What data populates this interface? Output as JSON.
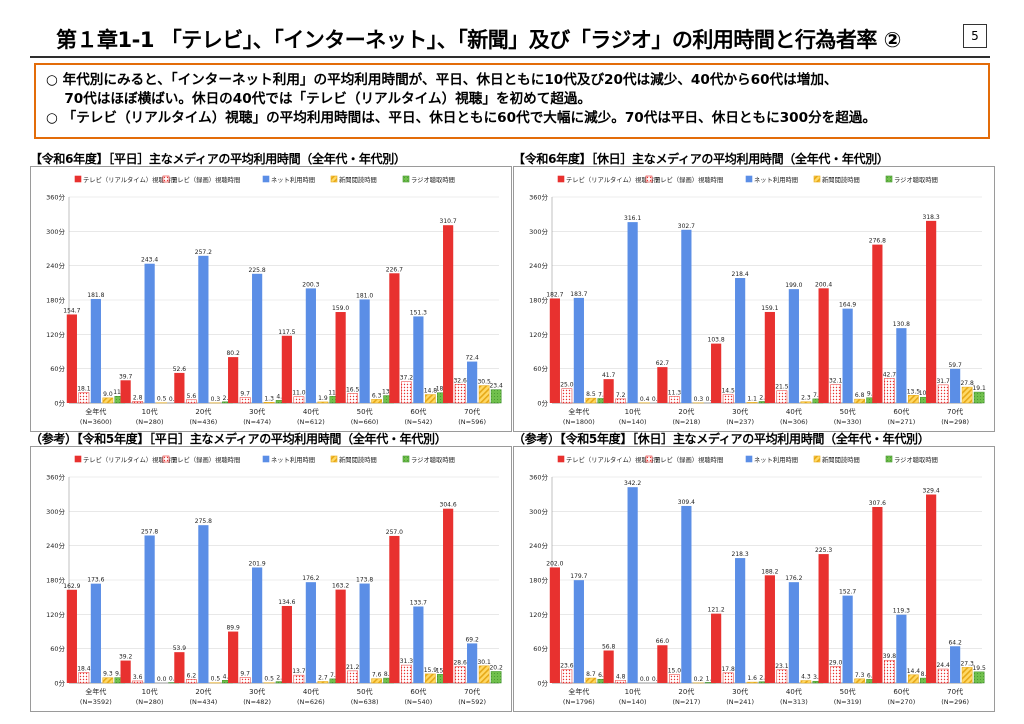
{
  "header": {
    "title": "第１章1-1 「テレビ」、「インターネット」、「新聞」及び「ラジオ」の利用時間と行為者率 ②",
    "page_number": "5"
  },
  "summary": {
    "lines": [
      "○ 年代別にみると、「インターネット利用」の平均利用時間が、平日、休日ともに10代及び20代は減少、40代から60代は増加、",
      "　 70代はほぼ横ばい。休日の40代では「テレビ（リアルタイム）視聴」を初めて超過。",
      "○ 「テレビ（リアルタイム）視聴」の平均利用時間は、平日、休日ともに60代で大幅に減少。70代は平日、休日ともに300分を超過。"
    ]
  },
  "legend_labels": [
    "テレビ（リアルタイム）視聴時間",
    "テレビ（録画）視聴時間",
    "ネット利用時間",
    "新聞閲読時間",
    "ラジオ聴取時間"
  ],
  "colors": {
    "accent_border": "#e36c09",
    "tv_realtime": "#e8312f",
    "tv_recorded": "#ffffff",
    "tv_recorded_dots": "#e8312f",
    "net": "#5b8ee6",
    "newspaper": "#ffd966",
    "newspaper_stripes": "#e6a817",
    "radio": "#70c04c",
    "radio_dots": "#3f8f2a"
  },
  "chart_data": [
    {
      "type": "bar",
      "title": "【令和6年度】［平日］主なメディアの平均利用時間（全年代・年代別）",
      "categories": [
        "全年代",
        "10代",
        "20代",
        "30代",
        "40代",
        "50代",
        "60代",
        "70代"
      ],
      "category_n": [
        "(N=3600)",
        "(N=280)",
        "(N=436)",
        "(N=474)",
        "(N=612)",
        "(N=660)",
        "(N=542)",
        "(N=596)"
      ],
      "yticks": [
        "0分",
        "60分",
        "120分",
        "180分",
        "240分",
        "300分",
        "360分"
      ],
      "ylim": [
        0,
        360
      ],
      "legend_position": "top",
      "series": [
        {
          "name": "テレビ（リアルタイム）視聴時間",
          "values": [
            154.7,
            39.7,
            52.6,
            80.2,
            117.5,
            159.0,
            226.7,
            310.7
          ]
        },
        {
          "name": "テレビ（録画）視聴時間",
          "values": [
            18.1,
            2.8,
            5.6,
            9.7,
            11.0,
            16.5,
            37.2,
            32.6
          ]
        },
        {
          "name": "ネット利用時間",
          "values": [
            181.8,
            243.4,
            257.2,
            225.8,
            200.3,
            181.0,
            151.3,
            72.4
          ]
        },
        {
          "name": "新聞閲読時間",
          "values": [
            9.0,
            0.5,
            0.3,
            1.3,
            1.9,
            6.3,
            14.8,
            30.5
          ]
        },
        {
          "name": "ラジオ聴取時間",
          "values": [
            11.8,
            0.0,
            2.1,
            4.7,
            11.7,
            13.0,
            18.0,
            23.4
          ]
        }
      ]
    },
    {
      "type": "bar",
      "title": "【令和6年度】［休日］主なメディアの平均利用時間（全年代・年代別）",
      "categories": [
        "全年代",
        "10代",
        "20代",
        "30代",
        "40代",
        "50代",
        "60代",
        "70代"
      ],
      "category_n": [
        "(N=1800)",
        "(N=140)",
        "(N=218)",
        "(N=237)",
        "(N=306)",
        "(N=330)",
        "(N=271)",
        "(N=298)"
      ],
      "yticks": [
        "0分",
        "60分",
        "120分",
        "180分",
        "240分",
        "300分",
        "360分"
      ],
      "ylim": [
        0,
        360
      ],
      "legend_position": "top",
      "series": [
        {
          "name": "テレビ（リアルタイム）視聴時間",
          "values": [
            182.7,
            41.7,
            62.7,
            103.8,
            159.1,
            200.4,
            276.8,
            318.3
          ]
        },
        {
          "name": "テレビ（録画）視聴時間",
          "values": [
            25.0,
            7.2,
            11.3,
            14.5,
            21.5,
            32.1,
            42.7,
            31.7
          ]
        },
        {
          "name": "ネット利用時間",
          "values": [
            183.7,
            316.1,
            302.7,
            218.4,
            199.0,
            164.9,
            130.8,
            59.7
          ]
        },
        {
          "name": "新聞閲読時間",
          "values": [
            8.5,
            0.4,
            0.3,
            1.1,
            2.3,
            6.8,
            13.5,
            27.8
          ]
        },
        {
          "name": "ラジオ聴取時間",
          "values": [
            7.9,
            0.0,
            0.0,
            2.7,
            7.2,
            9.2,
            10.1,
            19.1
          ]
        }
      ]
    },
    {
      "type": "bar",
      "title": "（参考）【令和5年度】［平日］主なメディアの平均利用時間（全年代・年代別）",
      "categories": [
        "全年代",
        "10代",
        "20代",
        "30代",
        "40代",
        "50代",
        "60代",
        "70代"
      ],
      "category_n": [
        "(N=3592)",
        "(N=280)",
        "(N=434)",
        "(N=482)",
        "(N=626)",
        "(N=638)",
        "(N=540)",
        "(N=592)"
      ],
      "yticks": [
        "0分",
        "60分",
        "120分",
        "180分",
        "240分",
        "300分",
        "360分"
      ],
      "ylim": [
        0,
        360
      ],
      "legend_position": "top",
      "series": [
        {
          "name": "テレビ（リアルタイム）視聴時間",
          "values": [
            162.9,
            39.2,
            53.9,
            89.9,
            134.6,
            163.2,
            257.0,
            304.6
          ]
        },
        {
          "name": "テレビ（録画）視聴時間",
          "values": [
            18.4,
            3.6,
            6.2,
            9.7,
            13.7,
            21.2,
            31.3,
            28.6
          ]
        },
        {
          "name": "ネット利用時間",
          "values": [
            173.6,
            257.8,
            275.8,
            201.9,
            176.2,
            173.8,
            133.7,
            69.2
          ]
        },
        {
          "name": "新聞閲読時間",
          "values": [
            9.3,
            0.0,
            0.5,
            0.5,
            2.7,
            7.6,
            15.9,
            30.1
          ]
        },
        {
          "name": "ラジオ聴取時間",
          "values": [
            9.4,
            0.8,
            4.8,
            2.5,
            7.2,
            8.6,
            15.2,
            20.2
          ]
        }
      ]
    },
    {
      "type": "bar",
      "title": "（参考）【令和5年度】［休日］主なメディアの平均利用時間（全年代・年代別）",
      "categories": [
        "全年代",
        "10代",
        "20代",
        "30代",
        "40代",
        "50代",
        "60代",
        "70代"
      ],
      "category_n": [
        "(N=1796)",
        "(N=140)",
        "(N=217)",
        "(N=241)",
        "(N=313)",
        "(N=319)",
        "(N=270)",
        "(N=296)"
      ],
      "yticks": [
        "0分",
        "60分",
        "120分",
        "180分",
        "240分",
        "300分",
        "360分"
      ],
      "ylim": [
        0,
        360
      ],
      "legend_position": "top",
      "series": [
        {
          "name": "テレビ（リアルタイム）視聴時間",
          "values": [
            202.0,
            56.8,
            66.0,
            121.2,
            188.2,
            225.3,
            307.6,
            329.4
          ]
        },
        {
          "name": "テレビ（録画）視聴時間",
          "values": [
            23.6,
            4.8,
            15.0,
            17.8,
            23.1,
            29.0,
            39.8,
            24.4
          ]
        },
        {
          "name": "ネット利用時間",
          "values": [
            179.7,
            342.2,
            309.4,
            218.3,
            176.2,
            152.7,
            119.3,
            64.2
          ]
        },
        {
          "name": "新聞閲読時間",
          "values": [
            8.7,
            0.0,
            0.2,
            1.6,
            4.3,
            7.3,
            14.4,
            27.3
          ]
        },
        {
          "name": "ラジオ聴取時間",
          "values": [
            6.6,
            0.0,
            1.0,
            2.3,
            3.1,
            6.3,
            8.6,
            19.5
          ]
        }
      ]
    }
  ]
}
